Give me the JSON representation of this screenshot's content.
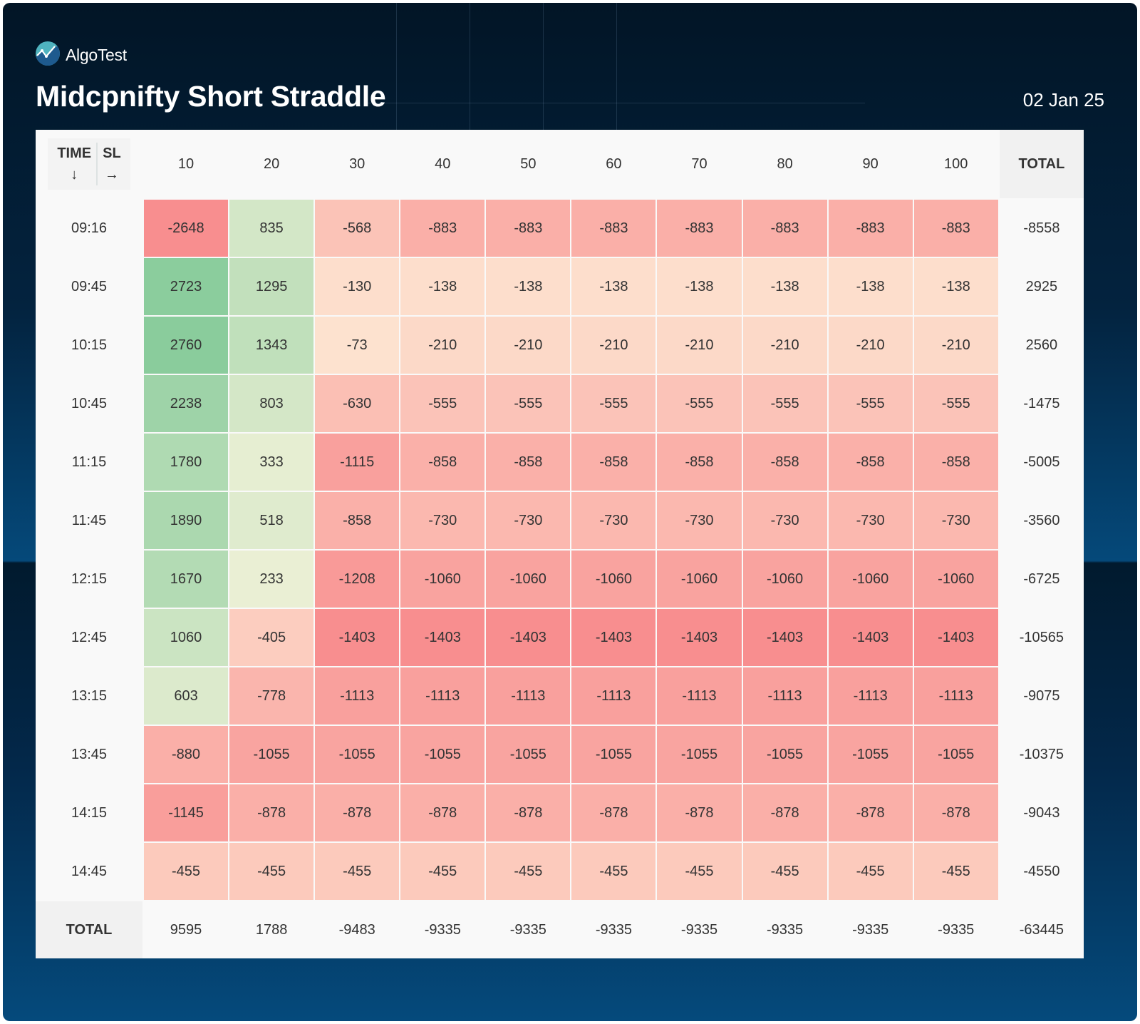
{
  "brand": {
    "name": "AlgoTest",
    "logo_icon": "algotest-logo-icon"
  },
  "header": {
    "title": "Midcpnifty Short Straddle",
    "date": "02 Jan 25"
  },
  "table": {
    "corner": {
      "row_axis_label": "TIME",
      "row_axis_arrow": "↓",
      "col_axis_label": "SL",
      "col_axis_arrow": "→"
    },
    "total_header": "TOTAL",
    "total_row_label": "TOTAL",
    "grand_total": "-63445"
  },
  "colors": {
    "strong_green": "#8acc9c",
    "light_green": "#eaefd4",
    "light_peach": "#fde2cf",
    "strong_red": "#f88e8f",
    "header_bg": "#f9f9f9",
    "total_bg": "#f1f1f1"
  },
  "chart_data": {
    "type": "heatmap",
    "title": "Midcpnifty Short Straddle",
    "xlabel": "SL",
    "ylabel": "TIME",
    "x": [
      "10",
      "20",
      "30",
      "40",
      "50",
      "60",
      "70",
      "80",
      "90",
      "100"
    ],
    "y": [
      "09:16",
      "09:45",
      "10:15",
      "10:45",
      "11:15",
      "11:45",
      "12:15",
      "12:45",
      "13:15",
      "13:45",
      "14:15",
      "14:45"
    ],
    "values": [
      [
        -2648,
        835,
        -568,
        -883,
        -883,
        -883,
        -883,
        -883,
        -883,
        -883
      ],
      [
        2723,
        1295,
        -130,
        -138,
        -138,
        -138,
        -138,
        -138,
        -138,
        -138
      ],
      [
        2760,
        1343,
        -73,
        -210,
        -210,
        -210,
        -210,
        -210,
        -210,
        -210
      ],
      [
        2238,
        803,
        -630,
        -555,
        -555,
        -555,
        -555,
        -555,
        -555,
        -555
      ],
      [
        1780,
        333,
        -1115,
        -858,
        -858,
        -858,
        -858,
        -858,
        -858,
        -858
      ],
      [
        1890,
        518,
        -858,
        -730,
        -730,
        -730,
        -730,
        -730,
        -730,
        -730
      ],
      [
        1670,
        233,
        -1208,
        -1060,
        -1060,
        -1060,
        -1060,
        -1060,
        -1060,
        -1060
      ],
      [
        1060,
        -405,
        -1403,
        -1403,
        -1403,
        -1403,
        -1403,
        -1403,
        -1403,
        -1403
      ],
      [
        603,
        -778,
        -1113,
        -1113,
        -1113,
        -1113,
        -1113,
        -1113,
        -1113,
        -1113
      ],
      [
        -880,
        -1055,
        -1055,
        -1055,
        -1055,
        -1055,
        -1055,
        -1055,
        -1055,
        -1055
      ],
      [
        -1145,
        -878,
        -878,
        -878,
        -878,
        -878,
        -878,
        -878,
        -878,
        -878
      ],
      [
        -455,
        -455,
        -455,
        -455,
        -455,
        -455,
        -455,
        -455,
        -455,
        -455
      ]
    ],
    "row_totals": [
      -8558,
      2925,
      2560,
      -1475,
      -5005,
      -3560,
      -6725,
      -10565,
      -9075,
      -10375,
      -9043,
      -4550
    ],
    "col_totals": [
      9595,
      1788,
      -9483,
      -9335,
      -9335,
      -9335,
      -9335,
      -9335,
      -9335,
      -9335
    ],
    "grand_total": -63445,
    "color_scale": "diverging red-peach-green"
  }
}
